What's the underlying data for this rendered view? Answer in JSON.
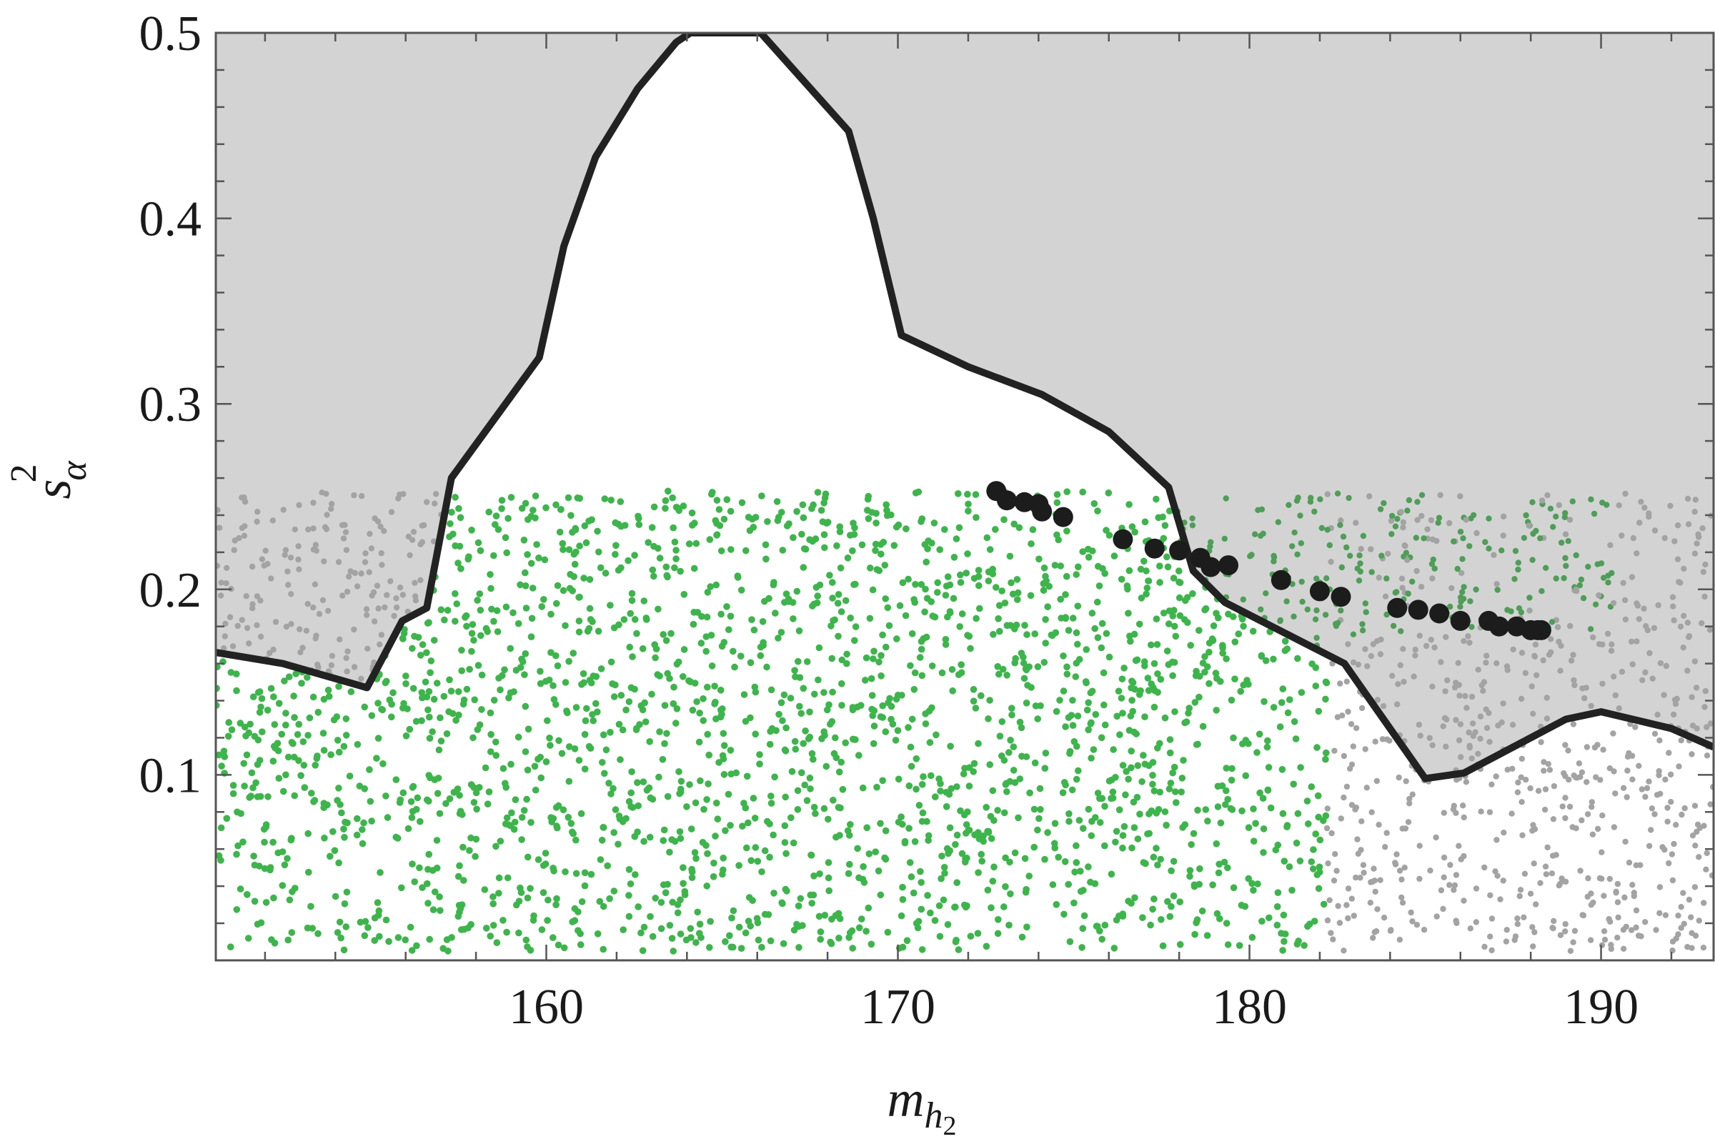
{
  "chart_data": {
    "type": "scatter",
    "title": "",
    "xlabel": "m",
    "xlabel_sub": "h",
    "xlabel_subsub": "2",
    "ylabel": "s",
    "ylabel_sub": "α",
    "ylabel_sup": "2",
    "xlim": [
      150.6,
      193.2
    ],
    "ylim": [
      0.0,
      0.5
    ],
    "x_ticks": [
      160,
      170,
      180,
      190
    ],
    "x_tick_labels": [
      "160",
      "170",
      "180",
      "190"
    ],
    "y_ticks": [
      0.1,
      0.2,
      0.3,
      0.4,
      0.5
    ],
    "y_tick_labels": [
      "0.1",
      "0.2",
      "0.3",
      "0.4",
      "0.5"
    ],
    "grid": false,
    "colors": {
      "excluded_region": "#d3d3d3",
      "boundary": "#222222",
      "green_points": "#3cb54a",
      "gray_points": "#a3a3a3",
      "black_points": "#1c1c1c"
    },
    "exclusion_boundary": {
      "x": [
        150.6,
        152.5,
        154.9,
        155.9,
        156.6,
        157.3,
        159.8,
        160.5,
        161.4,
        162.6,
        163.7,
        164.1,
        164.1,
        166.1,
        166.1,
        168.6,
        169.3,
        170.1,
        172.0,
        174.1,
        176.0,
        177.7,
        178.4,
        179.3,
        182.7,
        185.0,
        186.1,
        189.0,
        190.0,
        192.0,
        193.2
      ],
      "y": [
        0.166,
        0.16,
        0.147,
        0.183,
        0.19,
        0.26,
        0.325,
        0.385,
        0.433,
        0.47,
        0.495,
        0.5,
        0.5,
        0.5,
        0.5,
        0.447,
        0.4,
        0.337,
        0.32,
        0.305,
        0.285,
        0.255,
        0.21,
        0.193,
        0.16,
        0.098,
        0.101,
        0.13,
        0.134,
        0.125,
        0.115
      ]
    },
    "highlight_points": {
      "x": [
        172.8,
        173.1,
        173.6,
        174.0,
        174.1,
        174.7,
        176.4,
        177.3,
        178.0,
        178.6,
        178.9,
        179.4,
        180.9,
        182.0,
        182.6,
        184.2,
        184.8,
        185.4,
        186.0,
        186.8,
        187.1,
        187.6,
        188.0,
        188.2,
        188.3
      ],
      "y": [
        0.253,
        0.248,
        0.247,
        0.246,
        0.242,
        0.239,
        0.227,
        0.222,
        0.221,
        0.217,
        0.212,
        0.213,
        0.205,
        0.199,
        0.196,
        0.19,
        0.189,
        0.187,
        0.183,
        0.183,
        0.18,
        0.18,
        0.178,
        0.178,
        0.178
      ]
    },
    "scan_points": {
      "description_of_distribution": "uniform random scan with s_alpha^2 below 0.25; green where allowed, gray where excluded",
      "count": 3200,
      "y_max": 0.253
    }
  }
}
